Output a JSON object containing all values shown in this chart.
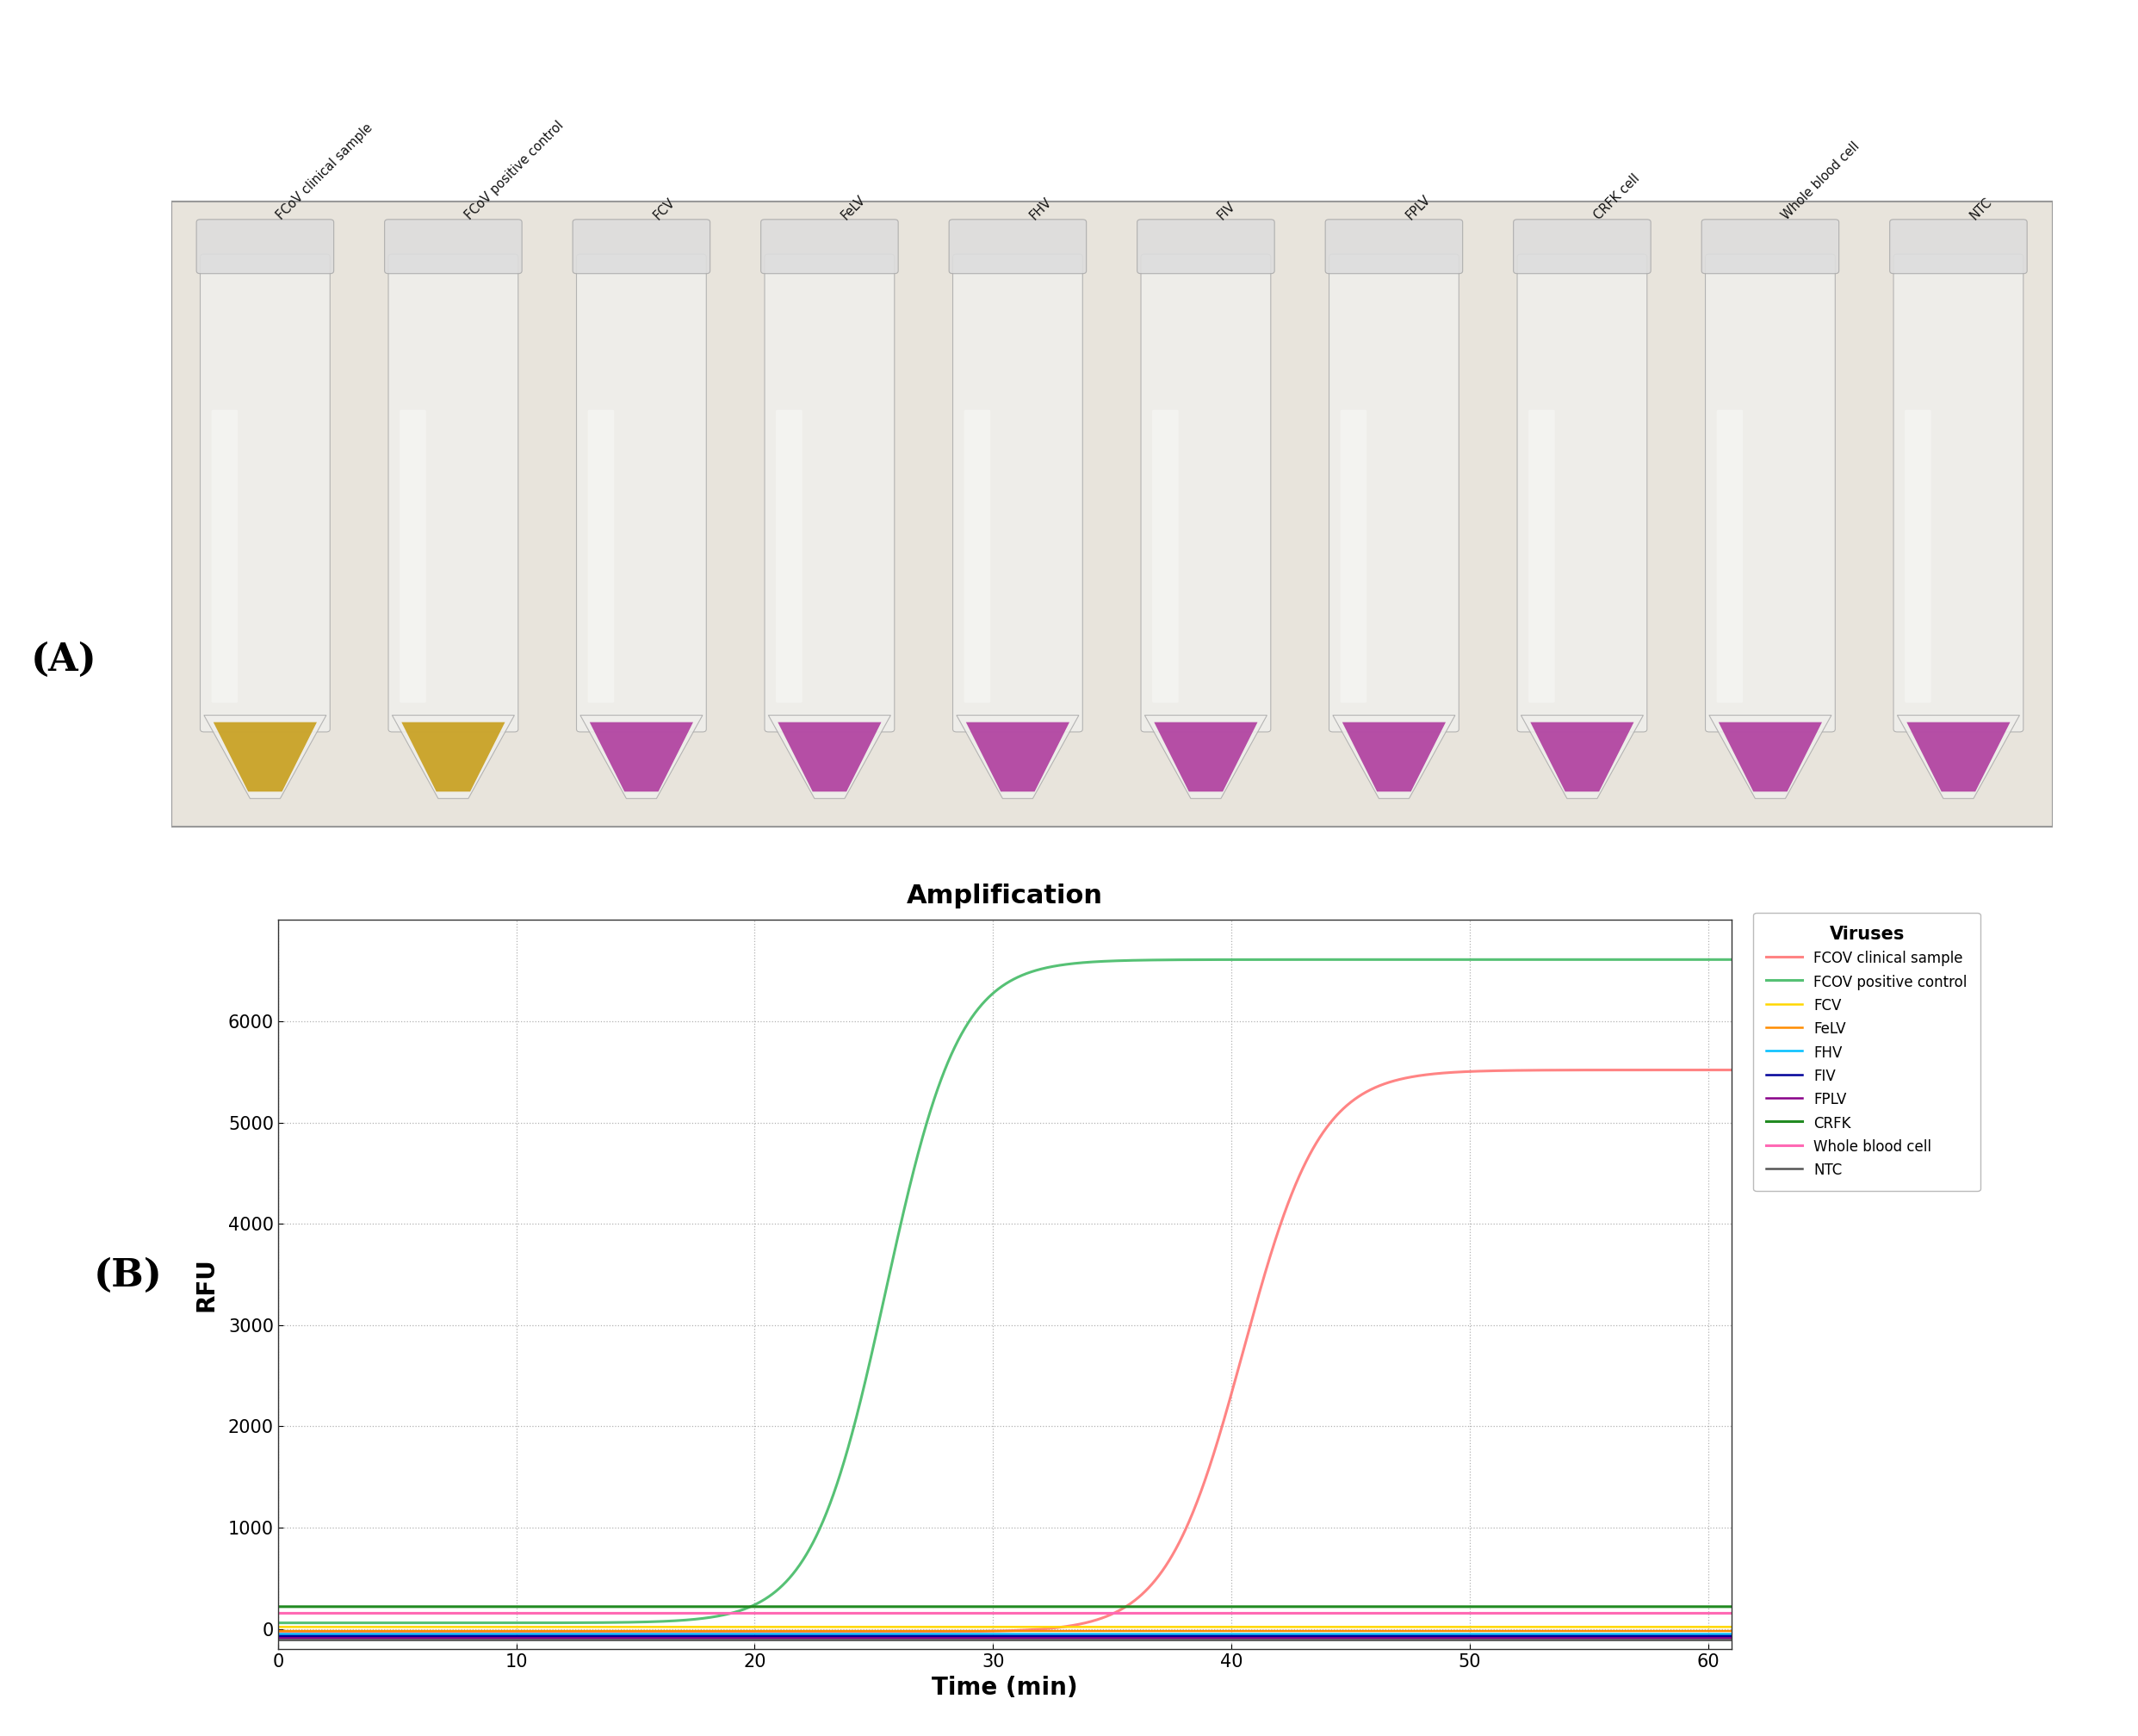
{
  "title_A": "(A)",
  "title_B": "(B)",
  "chart_title": "Amplification",
  "xlabel": "Time (min)",
  "ylabel": "RFU",
  "xlim": [
    0,
    61
  ],
  "ylim": [
    -200,
    7000
  ],
  "yticks": [
    0,
    1000,
    2000,
    3000,
    4000,
    5000,
    6000
  ],
  "xticks": [
    0,
    10,
    20,
    30,
    40,
    50,
    60
  ],
  "legend_title": "Viruses",
  "series": [
    {
      "label": "FCOV clinical sample",
      "color": "#FF7777",
      "sigmoid_midpoint": 40.5,
      "sigmoid_steepness": 0.62,
      "baseline": -30,
      "amplitude": 5550,
      "linewidth": 2.2,
      "alpha": 0.9
    },
    {
      "label": "FCOV positive control",
      "color": "#44BB66",
      "sigmoid_midpoint": 25.5,
      "sigmoid_steepness": 0.65,
      "baseline": 60,
      "amplitude": 6550,
      "linewidth": 2.2,
      "alpha": 0.9
    },
    {
      "label": "FCV",
      "color": "#FFD700",
      "flat_value": 20,
      "linewidth": 1.8,
      "alpha": 1.0
    },
    {
      "label": "FeLV",
      "color": "#FF8C00",
      "flat_value": -20,
      "linewidth": 1.8,
      "alpha": 1.0
    },
    {
      "label": "FHV",
      "color": "#00BFFF",
      "flat_value": -50,
      "linewidth": 1.8,
      "alpha": 1.0
    },
    {
      "label": "FIV",
      "color": "#000099",
      "flat_value": -70,
      "linewidth": 1.8,
      "alpha": 1.0
    },
    {
      "label": "FPLV",
      "color": "#880088",
      "flat_value": -90,
      "linewidth": 1.8,
      "alpha": 1.0
    },
    {
      "label": "CRFK",
      "color": "#228B22",
      "flat_value": 220,
      "linewidth": 2.2,
      "alpha": 1.0
    },
    {
      "label": "Whole blood cell",
      "color": "#FF69B4",
      "flat_value": 155,
      "linewidth": 2.2,
      "alpha": 1.0
    },
    {
      "label": "NTC",
      "color": "#555555",
      "flat_value": -110,
      "linewidth": 1.8,
      "alpha": 1.0
    }
  ],
  "tube_labels": [
    "FCoV clinical sample",
    "FCoV positive control",
    "FCV",
    "FeLV",
    "FHV",
    "FIV",
    "FPLV",
    "CRFK cell",
    "Whole blood cell",
    "NTC"
  ],
  "tube_liquid_colors": [
    "#C8A020",
    "#C8A020",
    "#B040A0",
    "#B040A0",
    "#B040A0",
    "#B040A0",
    "#B040A0",
    "#B040A0",
    "#B040A0",
    "#B040A0"
  ],
  "photo_bg": "#E8E4DC",
  "tube_body_color": "#F0EFEC",
  "tube_edge_color": "#AAAAAA",
  "background_color": "#FFFFFF"
}
